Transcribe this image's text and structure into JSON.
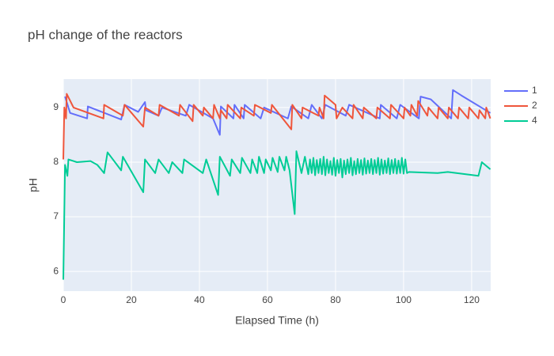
{
  "chart_data": {
    "type": "line",
    "title": "pH change of the reactors",
    "x_label": "Elapsed Time (h)",
    "y_label": "pH",
    "xlim": [
      0,
      125.6
    ],
    "ylim": [
      5.64,
      9.52
    ],
    "xticks": [
      0,
      20,
      40,
      60,
      80,
      100,
      120
    ],
    "yticks": [
      6,
      7,
      8,
      9
    ],
    "grid": true,
    "legend": "right",
    "series": [
      {
        "name": "1",
        "color": "#636efa",
        "x": [
          0.5,
          2,
          7,
          7.2,
          17,
          18,
          22,
          24,
          24.3,
          28,
          29,
          36,
          37,
          44,
          46,
          46.3,
          50,
          50.3,
          53,
          53.3,
          58,
          59,
          66,
          67,
          72,
          73,
          76,
          77,
          83,
          84,
          93,
          93.3,
          98,
          99,
          104.5,
          105,
          108,
          114,
          114.5,
          117,
          125.5
        ],
        "values": [
          9.2,
          8.9,
          8.8,
          9.02,
          8.78,
          9.05,
          8.92,
          9.1,
          8.95,
          8.85,
          9.0,
          8.85,
          9.05,
          8.8,
          8.5,
          9.02,
          8.8,
          9.05,
          8.8,
          9.05,
          8.8,
          9.0,
          8.8,
          9.02,
          8.8,
          9.05,
          8.8,
          9.05,
          8.85,
          9.05,
          8.8,
          9.05,
          8.8,
          9.05,
          8.8,
          9.2,
          9.15,
          8.8,
          9.32,
          9.22,
          8.9
        ]
      },
      {
        "name": "2",
        "color": "#ef553b",
        "x": [
          0,
          0.3,
          0.8,
          1,
          3,
          11.8,
          12,
          17.5,
          18,
          23.5,
          24,
          28,
          28.3,
          34,
          34.3,
          38,
          38.3,
          41,
          41.3,
          44,
          44.3,
          46,
          46.3,
          48,
          48.3,
          52,
          52.3,
          56,
          56.3,
          61,
          61.3,
          67,
          67.3,
          70,
          70.3,
          75,
          75.3,
          76.5,
          76.8,
          80,
          80.3,
          82,
          85,
          85.3,
          88,
          88.3,
          92,
          92.3,
          96,
          96.3,
          100,
          100.3,
          102,
          102.3,
          104,
          104.3,
          107,
          107.3,
          110,
          110.3,
          113,
          113.3,
          116,
          116.3,
          119,
          119.3,
          122,
          122.3,
          124,
          124.3,
          125.5
        ],
        "values": [
          8.05,
          9.0,
          8.8,
          9.25,
          9.0,
          8.8,
          9.05,
          8.85,
          9.05,
          8.65,
          9.0,
          8.85,
          9.05,
          8.85,
          9.05,
          8.75,
          9.05,
          8.85,
          9.0,
          8.8,
          9.05,
          8.8,
          8.95,
          8.8,
          9.05,
          8.8,
          9.0,
          8.85,
          9.05,
          8.9,
          9.05,
          8.6,
          9.05,
          8.8,
          9.0,
          8.85,
          9.0,
          8.8,
          9.22,
          9.05,
          8.8,
          9.0,
          8.8,
          9.05,
          8.8,
          9.0,
          8.8,
          9.0,
          8.8,
          9.05,
          8.8,
          9.0,
          8.85,
          9.05,
          8.85,
          9.12,
          8.85,
          9.0,
          8.8,
          9.0,
          8.8,
          9.0,
          8.8,
          9.0,
          8.8,
          9.0,
          8.8,
          8.95,
          8.8,
          9.0,
          8.8
        ]
      },
      {
        "name": "4",
        "color": "#00cc96",
        "x": [
          0,
          0.5,
          1.2,
          1.5,
          4,
          8,
          10,
          12,
          13,
          17,
          17.5,
          23.5,
          24,
          27,
          28,
          31,
          32,
          35,
          35.5,
          41,
          42,
          45.5,
          46,
          49,
          49.5,
          52,
          52.5,
          55,
          55.5,
          57,
          57.5,
          59,
          59.5,
          61,
          61.5,
          63,
          63.5,
          65,
          65.5,
          66.5,
          68,
          68.5,
          70,
          71,
          72,
          72.5,
          73,
          73.5,
          74,
          74.5,
          75,
          75.5,
          76,
          76.5,
          77,
          77.5,
          78,
          78.5,
          79,
          79.5,
          80,
          80.5,
          81,
          81.5,
          82,
          82.5,
          83,
          83.5,
          84,
          84.5,
          85,
          85.5,
          86,
          86.5,
          87,
          87.5,
          88,
          88.5,
          89,
          89.5,
          90,
          90.5,
          91,
          91.5,
          92,
          92.5,
          93,
          93.5,
          94,
          94.5,
          95,
          95.5,
          96,
          96.5,
          97,
          97.5,
          98,
          98.5,
          99,
          99.5,
          100,
          100.5,
          101,
          101.5,
          110,
          113,
          122,
          123,
          125.5
        ],
        "values": [
          5.85,
          7.95,
          7.75,
          8.05,
          8.0,
          8.02,
          7.95,
          7.8,
          8.18,
          7.85,
          8.1,
          7.45,
          8.05,
          7.8,
          8.05,
          7.8,
          8.0,
          7.8,
          8.05,
          7.8,
          8.05,
          7.4,
          8.1,
          7.75,
          8.05,
          7.8,
          8.08,
          7.8,
          8.05,
          7.8,
          8.1,
          7.8,
          8.05,
          7.85,
          8.08,
          7.82,
          8.1,
          7.85,
          8.1,
          7.85,
          7.05,
          8.2,
          7.8,
          8.1,
          7.78,
          8.05,
          7.8,
          8.08,
          7.76,
          8.04,
          7.8,
          8.06,
          7.78,
          8.1,
          7.76,
          8.05,
          7.8,
          8.02,
          7.77,
          8.08,
          7.75,
          8.04,
          7.8,
          8.06,
          7.72,
          8.03,
          7.78,
          8.05,
          7.8,
          8.08,
          7.76,
          8.02,
          7.78,
          8.06,
          7.8,
          8.04,
          7.77,
          8.07,
          7.79,
          8.03,
          7.8,
          8.06,
          7.78,
          8.04,
          7.8,
          8.08,
          7.77,
          8.05,
          7.79,
          8.03,
          7.8,
          8.07,
          7.78,
          8.04,
          7.8,
          8.06,
          7.79,
          8.03,
          7.8,
          8.08,
          7.79,
          8.05,
          7.8,
          7.82,
          7.8,
          7.82,
          7.75,
          8.0,
          7.87
        ]
      }
    ]
  }
}
